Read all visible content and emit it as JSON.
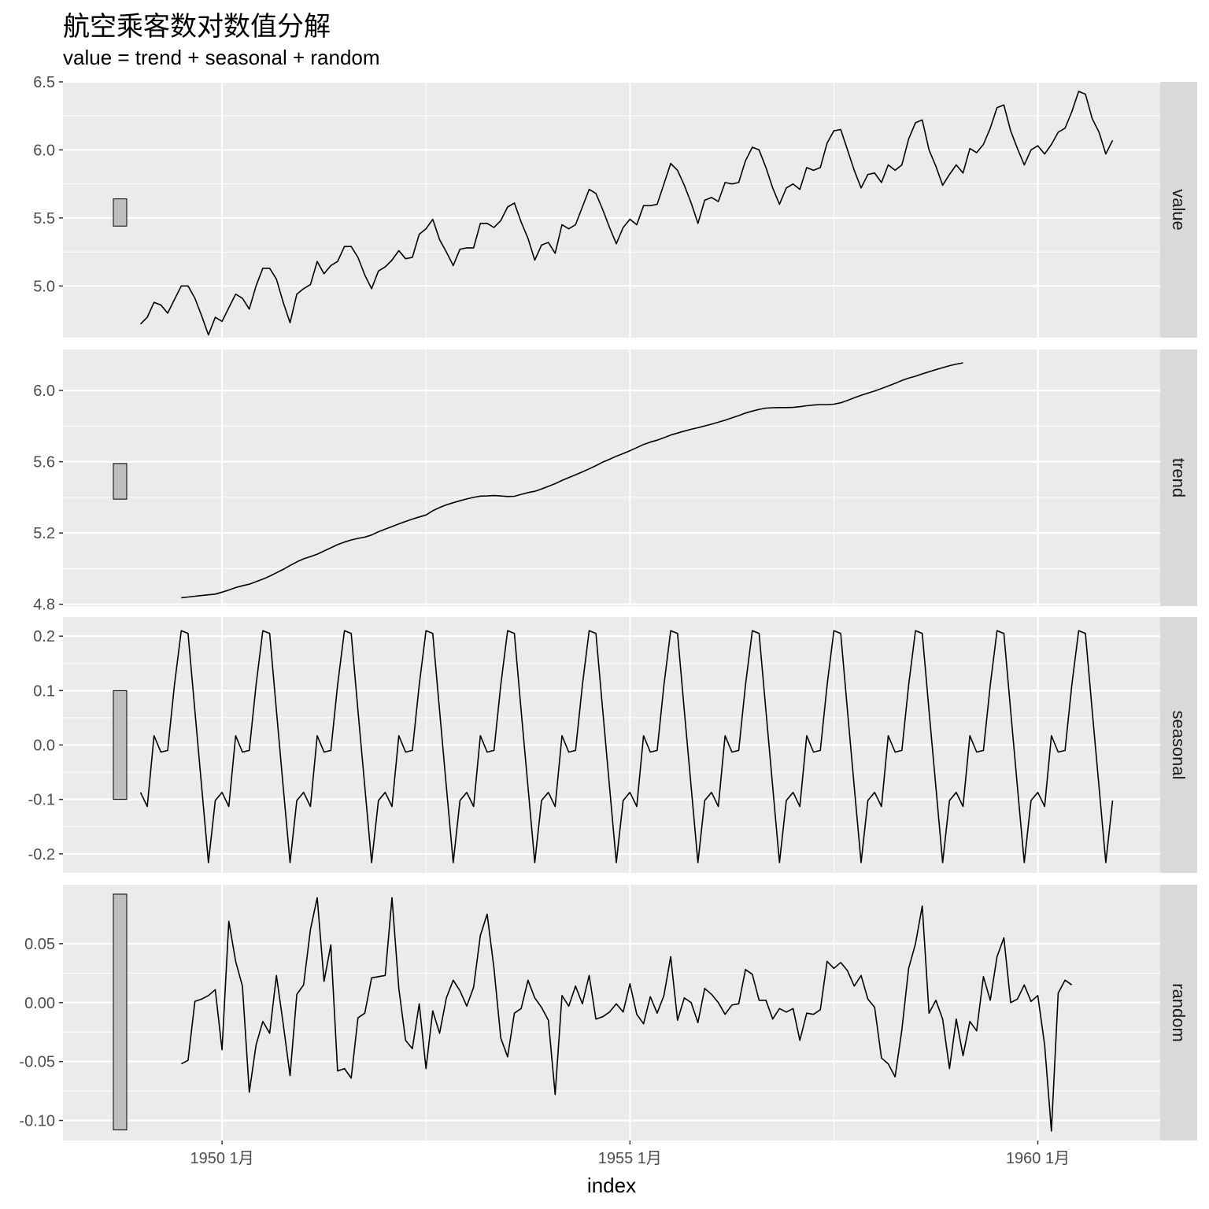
{
  "chart_data": {
    "type": "line",
    "title": "航空乘客数对数值分解",
    "subtitle": "value = trend + seasonal + random",
    "xlabel": "index",
    "x_ticks": [
      "1950 1月",
      "1955 1月",
      "1960 1月"
    ],
    "x_tick_values": [
      1950.0,
      1955.0,
      1960.0
    ],
    "xlim": [
      1948.05,
      1961.5
    ],
    "x_start": 1949.0,
    "x_step": 0.08333333,
    "panels": [
      {
        "name": "value",
        "ylim": [
          4.62,
          6.5
        ],
        "y_ticks": [
          "5.0",
          "5.5",
          "6.0",
          "6.5"
        ],
        "y_tick_values": [
          5.0,
          5.5,
          6.0,
          6.5
        ],
        "scale_bar": [
          5.44,
          5.64
        ],
        "offset": 0,
        "values": [
          4.72,
          4.77,
          4.88,
          4.86,
          4.8,
          4.9,
          5.0,
          5.0,
          4.91,
          4.78,
          4.64,
          4.77,
          4.74,
          4.84,
          4.94,
          4.91,
          4.83,
          5.0,
          5.13,
          5.13,
          5.05,
          4.88,
          4.73,
          4.94,
          4.98,
          5.01,
          5.18,
          5.09,
          5.15,
          5.18,
          5.29,
          5.29,
          5.21,
          5.08,
          4.98,
          5.11,
          5.14,
          5.19,
          5.26,
          5.2,
          5.21,
          5.38,
          5.42,
          5.49,
          5.34,
          5.25,
          5.15,
          5.27,
          5.28,
          5.28,
          5.46,
          5.46,
          5.43,
          5.48,
          5.58,
          5.61,
          5.47,
          5.35,
          5.19,
          5.3,
          5.32,
          5.24,
          5.45,
          5.42,
          5.45,
          5.58,
          5.71,
          5.68,
          5.56,
          5.43,
          5.31,
          5.43,
          5.49,
          5.45,
          5.59,
          5.59,
          5.6,
          5.75,
          5.9,
          5.85,
          5.74,
          5.61,
          5.46,
          5.63,
          5.65,
          5.62,
          5.76,
          5.75,
          5.76,
          5.92,
          6.02,
          6.0,
          5.87,
          5.72,
          5.6,
          5.72,
          5.75,
          5.71,
          5.87,
          5.85,
          5.87,
          6.05,
          6.14,
          6.15,
          6.0,
          5.85,
          5.72,
          5.82,
          5.83,
          5.76,
          5.89,
          5.85,
          5.89,
          6.08,
          6.2,
          6.22,
          6.0,
          5.88,
          5.74,
          5.82,
          5.89,
          5.83,
          6.01,
          5.98,
          6.04,
          6.16,
          6.31,
          6.33,
          6.14,
          6.01,
          5.89,
          6.0,
          6.03,
          5.97,
          6.04,
          6.13,
          6.16,
          6.28,
          6.43,
          6.41,
          6.23,
          6.13,
          5.97,
          6.07
        ]
      },
      {
        "name": "trend",
        "ylim": [
          4.79,
          6.23
        ],
        "y_ticks": [
          "4.8",
          "5.2",
          "5.6",
          "6.0"
        ],
        "y_tick_values": [
          4.8,
          5.2,
          5.6,
          6.0
        ],
        "scale_bar": [
          5.39,
          5.59
        ],
        "offset": 6,
        "values": [
          4.837,
          4.841,
          4.845,
          4.849,
          4.853,
          4.857,
          4.868,
          4.88,
          4.894,
          4.904,
          4.913,
          4.927,
          4.941,
          4.958,
          4.977,
          4.996,
          5.018,
          5.038,
          5.055,
          5.068,
          5.081,
          5.099,
          5.117,
          5.135,
          5.149,
          5.161,
          5.17,
          5.177,
          5.189,
          5.207,
          5.222,
          5.236,
          5.251,
          5.265,
          5.278,
          5.29,
          5.301,
          5.325,
          5.343,
          5.358,
          5.37,
          5.381,
          5.391,
          5.4,
          5.407,
          5.408,
          5.41,
          5.408,
          5.405,
          5.406,
          5.417,
          5.427,
          5.434,
          5.447,
          5.462,
          5.477,
          5.495,
          5.511,
          5.527,
          5.543,
          5.56,
          5.578,
          5.598,
          5.614,
          5.631,
          5.646,
          5.662,
          5.679,
          5.697,
          5.71,
          5.721,
          5.735,
          5.75,
          5.761,
          5.772,
          5.782,
          5.791,
          5.801,
          5.811,
          5.822,
          5.833,
          5.846,
          5.859,
          5.873,
          5.884,
          5.894,
          5.901,
          5.903,
          5.904,
          5.904,
          5.905,
          5.909,
          5.914,
          5.918,
          5.921,
          5.921,
          5.923,
          5.931,
          5.944,
          5.959,
          5.973,
          5.985,
          5.997,
          6.011,
          6.025,
          6.04,
          6.056,
          6.069,
          6.08,
          6.093,
          6.105,
          6.117,
          6.128,
          6.139,
          6.148,
          6.155
        ]
      },
      {
        "name": "seasonal",
        "ylim": [
          -0.235,
          0.235
        ],
        "y_ticks": [
          "-0.2",
          "-0.1",
          "0.0",
          "0.1",
          "0.2"
        ],
        "y_tick_values": [
          -0.2,
          -0.1,
          0.0,
          0.1,
          0.2
        ],
        "scale_bar": [
          -0.1,
          0.1
        ],
        "offset": 0,
        "period": [
          -0.087,
          -0.113,
          0.017,
          -0.013,
          -0.01,
          0.11,
          0.21,
          0.205,
          0.063,
          -0.077,
          -0.216,
          -0.102
        ],
        "n": 144
      },
      {
        "name": "random",
        "ylim": [
          -0.117,
          0.1
        ],
        "y_ticks": [
          "-0.10",
          "-0.05",
          "0.00",
          "0.05"
        ],
        "y_tick_values": [
          -0.1,
          -0.05,
          0.0,
          0.05
        ],
        "scale_bar": [
          -0.108,
          0.092
        ],
        "offset": 6,
        "values": [
          -0.052,
          -0.049,
          0.001,
          0.003,
          0.006,
          0.011,
          -0.04,
          0.069,
          0.035,
          0.014,
          -0.076,
          -0.036,
          -0.016,
          -0.026,
          0.023,
          -0.018,
          -0.062,
          0.007,
          0.015,
          0.062,
          0.089,
          0.018,
          0.049,
          -0.058,
          -0.056,
          -0.064,
          -0.013,
          -0.009,
          0.021,
          0.022,
          0.023,
          0.089,
          0.012,
          -0.032,
          -0.039,
          -0.001,
          -0.056,
          -0.007,
          -0.026,
          0.004,
          0.019,
          0.01,
          -0.003,
          0.013,
          0.057,
          0.075,
          0.029,
          -0.03,
          -0.046,
          -0.009,
          -0.005,
          0.019,
          0.004,
          -0.004,
          -0.015,
          -0.078,
          0.006,
          -0.003,
          0.014,
          -0.001,
          0.023,
          -0.014,
          -0.012,
          -0.008,
          -0.001,
          -0.008,
          0.016,
          -0.01,
          -0.018,
          0.005,
          -0.009,
          0.006,
          0.039,
          -0.015,
          0.004,
          0.0,
          -0.017,
          0.012,
          0.007,
          0.0,
          -0.01,
          -0.002,
          -0.001,
          0.028,
          0.024,
          0.002,
          0.002,
          -0.014,
          -0.005,
          -0.008,
          -0.005,
          -0.032,
          -0.009,
          -0.01,
          -0.006,
          0.035,
          0.029,
          0.034,
          0.027,
          0.014,
          0.023,
          0.003,
          -0.004,
          -0.047,
          -0.052,
          -0.063,
          -0.023,
          0.029,
          0.05,
          0.082,
          -0.009,
          0.002,
          -0.014,
          -0.056,
          -0.014,
          -0.045,
          -0.016,
          -0.024,
          0.022,
          0.002,
          0.039,
          0.055,
          0.0,
          0.003,
          0.015,
          0.001,
          0.006,
          -0.036,
          -0.109,
          0.008,
          0.019,
          0.015
        ]
      }
    ]
  }
}
